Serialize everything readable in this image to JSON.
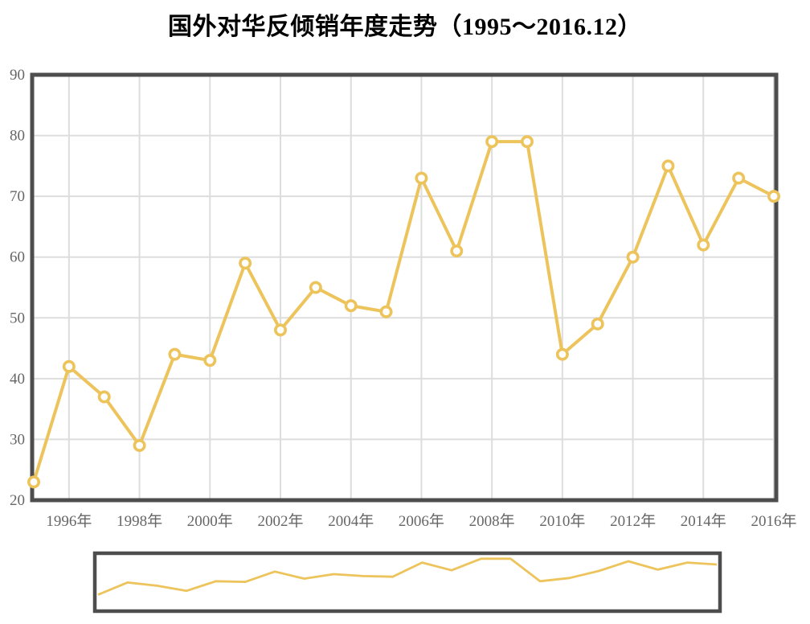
{
  "title": "国外对华反倾销年度走势（1995～2016.12）",
  "colors": {
    "line": "#EDC45C",
    "marker_fill": "#FFFFFF",
    "plot_border": "#4D4D4D",
    "gridline": "#DDDDDD",
    "tick_label": "#666666",
    "title_text": "#000000",
    "navigator_border": "#4D4D4D",
    "background": "#FFFFFF"
  },
  "chart_data": {
    "type": "line",
    "title": "国外对华反倾销年度走势（1995～2016.12）",
    "x": [
      1995,
      1996,
      1997,
      1998,
      1999,
      2000,
      2001,
      2002,
      2003,
      2004,
      2005,
      2006,
      2007,
      2008,
      2009,
      2010,
      2011,
      2012,
      2013,
      2014,
      2015,
      2016
    ],
    "values": [
      23,
      42,
      37,
      29,
      44,
      43,
      59,
      48,
      55,
      52,
      51,
      73,
      61,
      79,
      79,
      44,
      49,
      60,
      75,
      62,
      73,
      70
    ],
    "ylim": [
      20,
      90
    ],
    "yticks": [
      20,
      30,
      40,
      50,
      60,
      70,
      80,
      90
    ],
    "xtick_years": [
      1996,
      1998,
      2000,
      2002,
      2004,
      2006,
      2008,
      2010,
      2012,
      2014,
      2016
    ],
    "xtick_labels": [
      "1996年",
      "1998年",
      "2000年",
      "2002年",
      "2004年",
      "2006年",
      "2008年",
      "2010年",
      "2012年",
      "2014年",
      "2016年"
    ],
    "grid": true,
    "legend": "none",
    "markers": "hollow-circle",
    "navigator": {
      "type": "line",
      "ylim": [
        0,
        85
      ],
      "values_same_as_main": true
    }
  }
}
